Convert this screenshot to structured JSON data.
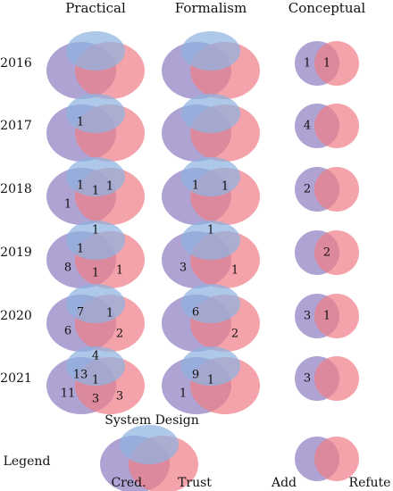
{
  "columns": [
    "Practical",
    "Formalism",
    "Conceptual"
  ],
  "rows": [
    {
      "year": "2016",
      "practical": {
        "purple": "",
        "overlap_pb": "",
        "center": "",
        "overlap_br": "",
        "red": "",
        "overlap_pr": "",
        "blue": ""
      },
      "formalism": {
        "purple": "",
        "overlap_pb": "",
        "center": "",
        "overlap_br": "",
        "red": "",
        "overlap_pr": "",
        "blue": ""
      },
      "conceptual": {
        "purple": "1",
        "overlap": "1",
        "red": ""
      }
    },
    {
      "year": "2017",
      "practical": {
        "purple": "",
        "overlap_pb": "1",
        "center": "",
        "overlap_br": "",
        "red": "",
        "overlap_pr": "",
        "blue": ""
      },
      "formalism": {
        "purple": "",
        "overlap_pb": "",
        "center": "",
        "overlap_br": "",
        "red": "",
        "overlap_pr": "",
        "blue": ""
      },
      "conceptual": {
        "purple": "4",
        "overlap": "",
        "red": ""
      }
    },
    {
      "year": "2018",
      "practical": {
        "purple": "1",
        "overlap_pb": "1",
        "center": "1",
        "overlap_br": "1",
        "red": "",
        "overlap_pr": "",
        "blue": ""
      },
      "formalism": {
        "purple": "",
        "overlap_pb": "1",
        "center": "",
        "overlap_br": "1",
        "red": "",
        "overlap_pr": "",
        "blue": ""
      },
      "conceptual": {
        "purple": "2",
        "overlap": "",
        "red": ""
      }
    },
    {
      "year": "2019",
      "practical": {
        "purple": "8",
        "overlap_pb": "1",
        "center": "",
        "overlap_br": "",
        "red": "1",
        "overlap_pr": "1",
        "blue": "1"
      },
      "formalism": {
        "purple": "3",
        "overlap_pb": "",
        "center": "",
        "overlap_br": "",
        "red": "1",
        "overlap_pr": "",
        "blue": "1"
      },
      "conceptual": {
        "purple": "",
        "overlap": "2",
        "red": ""
      }
    },
    {
      "year": "2020",
      "practical": {
        "purple": "6",
        "overlap_pb": "7",
        "center": "",
        "overlap_br": "1",
        "red": "2",
        "overlap_pr": "",
        "blue": ""
      },
      "formalism": {
        "purple": "",
        "overlap_pb": "6",
        "center": "",
        "overlap_br": "",
        "red": "2",
        "overlap_pr": "",
        "blue": ""
      },
      "conceptual": {
        "purple": "3",
        "overlap": "1",
        "red": ""
      }
    },
    {
      "year": "2021",
      "practical": {
        "purple": "11",
        "overlap_pb": "13",
        "center": "1",
        "overlap_br": "",
        "red": "3",
        "overlap_pr": "3",
        "blue": "4"
      },
      "formalism": {
        "purple": "1",
        "overlap_pb": "9",
        "center": "1",
        "overlap_br": "",
        "red": "",
        "overlap_pr": "",
        "blue": ""
      },
      "conceptual": {
        "purple": "3",
        "overlap": "",
        "red": ""
      }
    }
  ],
  "legend": {
    "title": "Legend",
    "top_label": "System Design",
    "left_label": "Cred.",
    "right_label": "Trust",
    "add_label": "Add",
    "refute_label": "Refute"
  },
  "colors": {
    "purple": "#8f7fc2",
    "blue": "#8fb3e0",
    "red": "#ee8088"
  }
}
